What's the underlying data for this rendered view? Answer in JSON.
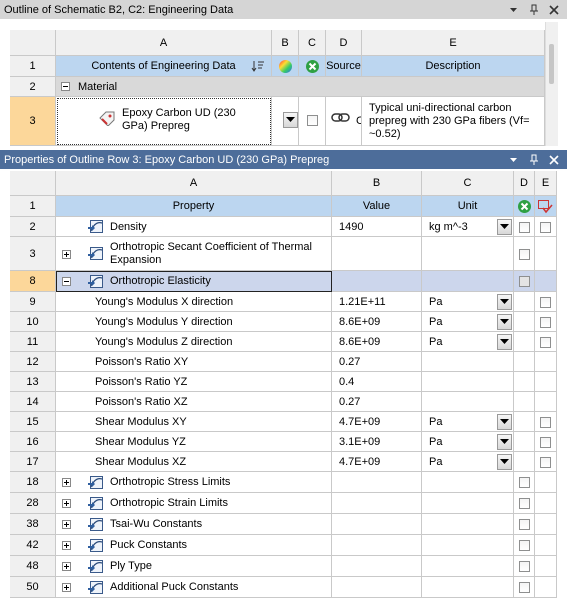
{
  "outline_panel": {
    "title": "Outline of Schematic B2, C2: Engineering Data",
    "columns": [
      "A",
      "B",
      "C",
      "D",
      "E"
    ],
    "header": {
      "number": "1",
      "contents": "Contents of Engineering Data",
      "source": "Source",
      "description": "Description"
    },
    "group": {
      "number": "2",
      "label": "Material"
    },
    "material": {
      "number": "3",
      "contents": "Epoxy Carbon UD (230 GPa) Prepreg",
      "source": "C",
      "description": "Typical uni-directional carbon prepreg with 230 GPa fibers (Vf= ~0.52)"
    }
  },
  "properties_panel": {
    "title": "Properties of Outline Row 3: Epoxy Carbon UD (230 GPa) Prepreg",
    "columns": [
      "A",
      "B",
      "C",
      "D",
      "E"
    ],
    "header": {
      "number": "1",
      "property": "Property",
      "value": "Value",
      "unit": "Unit"
    },
    "rows": [
      {
        "number": "2",
        "property": "Density",
        "value": "1490",
        "unit": "kg m^-3"
      },
      {
        "number": "3",
        "property": "Orthotropic Secant Coefficient of Thermal Expansion"
      },
      {
        "number": "8",
        "property": "Orthotropic Elasticity"
      },
      {
        "number": "9",
        "property": "Young's Modulus X direction",
        "value": "1.21E+11",
        "unit": "Pa"
      },
      {
        "number": "10",
        "property": "Young's Modulus Y direction",
        "value": "8.6E+09",
        "unit": "Pa"
      },
      {
        "number": "11",
        "property": "Young's Modulus Z direction",
        "value": "8.6E+09",
        "unit": "Pa"
      },
      {
        "number": "12",
        "property": "Poisson's Ratio XY",
        "value": "0.27"
      },
      {
        "number": "13",
        "property": "Poisson's Ratio YZ",
        "value": "0.4"
      },
      {
        "number": "14",
        "property": "Poisson's Ratio XZ",
        "value": "0.27"
      },
      {
        "number": "15",
        "property": "Shear Modulus XY",
        "value": "4.7E+09",
        "unit": "Pa"
      },
      {
        "number": "16",
        "property": "Shear Modulus YZ",
        "value": "3.1E+09",
        "unit": "Pa"
      },
      {
        "number": "17",
        "property": "Shear Modulus XZ",
        "value": "4.7E+09",
        "unit": "Pa"
      },
      {
        "number": "18",
        "property": "Orthotropic Stress Limits"
      },
      {
        "number": "28",
        "property": "Orthotropic Strain Limits"
      },
      {
        "number": "38",
        "property": "Tsai-Wu Constants"
      },
      {
        "number": "42",
        "property": "Puck Constants"
      },
      {
        "number": "48",
        "property": "Ply Type"
      },
      {
        "number": "50",
        "property": "Additional Puck Constants"
      }
    ]
  }
}
